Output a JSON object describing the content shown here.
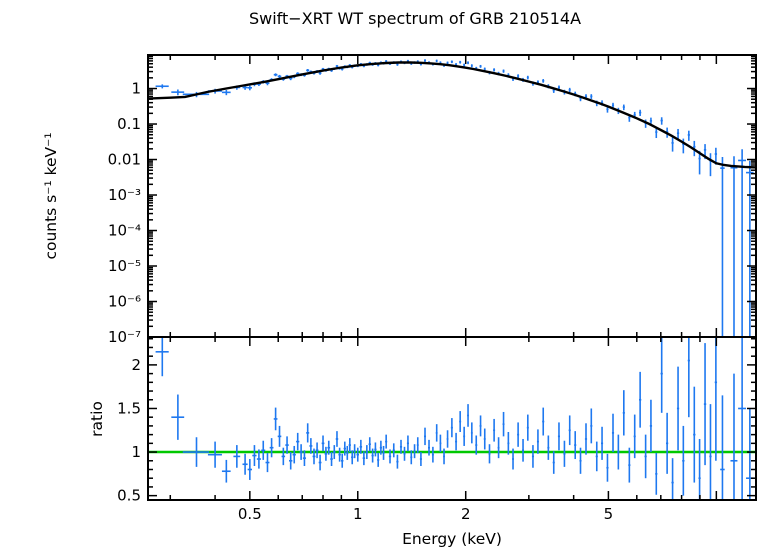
{
  "title": "Swift−XRT WT spectrum of GRB 210514A",
  "chart_data": {
    "type": "scatter+line",
    "title": "Swift−XRT WT spectrum of GRB 210514A",
    "description": "Two-panel X-ray spectrum. Top: count-rate spectrum, blue crosses = data with x/y error bars, black curve = folded model. Bottom: data/model ratio, blue crosses, green line at ratio = 1.",
    "xlabel": "Energy (keV)",
    "x_scale": "log",
    "x_lim": [
      0.26,
      12.9
    ],
    "x_ticks": {
      "labeled": [
        {
          "v": 0.5,
          "label": "0.5"
        },
        {
          "v": 1,
          "label": "1"
        },
        {
          "v": 2,
          "label": "2"
        },
        {
          "v": 5,
          "label": "5"
        }
      ],
      "unlabeled_major": [
        10
      ]
    },
    "colors": {
      "data": "#1e78f0",
      "model": "#000000",
      "ratio_line": "#00c800",
      "background": "#ffffff"
    },
    "top_panel": {
      "ylabel": "counts s⁻¹ keV⁻¹",
      "scale": "log",
      "lim": [
        1e-07,
        8.8
      ],
      "yticks": [
        {
          "v": 1,
          "label": "1"
        },
        {
          "v": 0.1,
          "label": "0.1"
        },
        {
          "v": 0.01,
          "label": "0.01"
        },
        {
          "v": 0.001,
          "label": "10⁻³"
        },
        {
          "v": 0.0001,
          "label": "10⁻⁴"
        },
        {
          "v": 1e-05,
          "label": "10⁻⁵"
        },
        {
          "v": 1e-06,
          "label": "10⁻⁶"
        },
        {
          "v": 1e-07,
          "label": "10⁻⁷"
        }
      ]
    },
    "bottom_panel": {
      "ylabel": "ratio",
      "scale": "linear",
      "lim": [
        0.45,
        2.32
      ],
      "yticks": [
        {
          "v": 0.5,
          "label": "0.5"
        },
        {
          "v": 1,
          "label": "1"
        },
        {
          "v": 1.5,
          "label": "1.5"
        },
        {
          "v": 2,
          "label": "2"
        }
      ],
      "reference_line": 1
    },
    "model": {
      "x": [
        0.26,
        0.3,
        0.33,
        0.38,
        0.43,
        0.48,
        0.55,
        0.62,
        0.7,
        0.8,
        0.9,
        1.0,
        1.1,
        1.2,
        1.3,
        1.4,
        1.5,
        1.6,
        1.7,
        1.8,
        1.9,
        2.0,
        2.1,
        2.2,
        2.4,
        2.6,
        2.8,
        3.0,
        3.25,
        3.5,
        3.75,
        4.0,
        4.25,
        4.5,
        4.75,
        5.0,
        5.5,
        6.0,
        6.5,
        7.0,
        7.5,
        8.0,
        8.5,
        9.0,
        9.5,
        10.0,
        10.5,
        11.0,
        12.0,
        12.9
      ],
      "y": [
        0.52,
        0.55,
        0.58,
        0.8,
        1.0,
        1.22,
        1.55,
        1.95,
        2.5,
        3.2,
        3.9,
        4.5,
        4.95,
        5.25,
        5.4,
        5.4,
        5.3,
        5.1,
        4.85,
        4.55,
        4.2,
        3.85,
        3.55,
        3.25,
        2.7,
        2.25,
        1.88,
        1.57,
        1.27,
        1.02,
        0.83,
        0.68,
        0.555,
        0.455,
        0.375,
        0.31,
        0.21,
        0.145,
        0.1,
        0.068,
        0.047,
        0.032,
        0.022,
        0.015,
        0.0105,
        0.0078,
        0.007,
        0.0066,
        0.0062,
        0.006
      ]
    },
    "bins_format": [
      "energy_keV",
      "half_width_keV",
      "ratio",
      "ratio_error"
    ],
    "bins": [
      [
        0.285,
        0.012,
        2.15,
        0.28
      ],
      [
        0.315,
        0.013,
        1.4,
        0.26
      ],
      [
        0.355,
        0.03,
        1.0,
        0.17
      ],
      [
        0.4,
        0.018,
        0.97,
        0.15
      ],
      [
        0.43,
        0.012,
        0.78,
        0.13
      ],
      [
        0.46,
        0.01,
        0.95,
        0.13
      ],
      [
        0.485,
        0.008,
        0.86,
        0.12
      ],
      [
        0.5,
        0.007,
        0.8,
        0.12
      ],
      [
        0.515,
        0.007,
        0.96,
        0.12
      ],
      [
        0.53,
        0.007,
        0.92,
        0.11
      ],
      [
        0.545,
        0.007,
        1.02,
        0.11
      ],
      [
        0.56,
        0.007,
        0.88,
        0.11
      ],
      [
        0.575,
        0.007,
        1.05,
        0.11
      ],
      [
        0.59,
        0.007,
        1.38,
        0.13
      ],
      [
        0.605,
        0.007,
        1.18,
        0.12
      ],
      [
        0.62,
        0.007,
        0.95,
        0.1
      ],
      [
        0.635,
        0.007,
        1.08,
        0.1
      ],
      [
        0.65,
        0.007,
        0.9,
        0.1
      ],
      [
        0.665,
        0.007,
        0.97,
        0.1
      ],
      [
        0.68,
        0.007,
        1.12,
        0.1
      ],
      [
        0.695,
        0.007,
        1.0,
        0.09
      ],
      [
        0.71,
        0.007,
        0.93,
        0.09
      ],
      [
        0.725,
        0.007,
        1.22,
        0.11
      ],
      [
        0.74,
        0.007,
        1.07,
        0.09
      ],
      [
        0.755,
        0.007,
        0.95,
        0.09
      ],
      [
        0.77,
        0.007,
        1.02,
        0.09
      ],
      [
        0.785,
        0.007,
        0.88,
        0.09
      ],
      [
        0.8,
        0.007,
        1.1,
        0.09
      ],
      [
        0.815,
        0.007,
        0.98,
        0.08
      ],
      [
        0.83,
        0.007,
        1.05,
        0.08
      ],
      [
        0.845,
        0.007,
        0.92,
        0.08
      ],
      [
        0.86,
        0.007,
        1.0,
        0.08
      ],
      [
        0.875,
        0.007,
        1.15,
        0.09
      ],
      [
        0.89,
        0.007,
        0.97,
        0.08
      ],
      [
        0.905,
        0.007,
        0.9,
        0.08
      ],
      [
        0.92,
        0.007,
        1.04,
        0.08
      ],
      [
        0.935,
        0.007,
        0.99,
        0.08
      ],
      [
        0.95,
        0.007,
        1.08,
        0.08
      ],
      [
        0.965,
        0.007,
        0.94,
        0.08
      ],
      [
        0.98,
        0.007,
        1.01,
        0.08
      ],
      [
        1.0,
        0.008,
        0.97,
        0.08
      ],
      [
        1.02,
        0.008,
        1.06,
        0.08
      ],
      [
        1.04,
        0.008,
        0.93,
        0.08
      ],
      [
        1.06,
        0.008,
        1.0,
        0.08
      ],
      [
        1.08,
        0.008,
        1.09,
        0.08
      ],
      [
        1.1,
        0.008,
        0.96,
        0.08
      ],
      [
        1.12,
        0.008,
        1.03,
        0.08
      ],
      [
        1.14,
        0.008,
        0.91,
        0.08
      ],
      [
        1.16,
        0.008,
        1.05,
        0.08
      ],
      [
        1.18,
        0.008,
        0.99,
        0.08
      ],
      [
        1.2,
        0.008,
        1.12,
        0.08
      ],
      [
        1.23,
        0.009,
        0.95,
        0.08
      ],
      [
        1.26,
        0.009,
        1.02,
        0.08
      ],
      [
        1.29,
        0.009,
        0.89,
        0.08
      ],
      [
        1.32,
        0.009,
        1.06,
        0.08
      ],
      [
        1.35,
        0.009,
        0.98,
        0.08
      ],
      [
        1.38,
        0.009,
        1.1,
        0.09
      ],
      [
        1.41,
        0.009,
        0.94,
        0.08
      ],
      [
        1.44,
        0.009,
        1.01,
        0.08
      ],
      [
        1.47,
        0.009,
        1.08,
        0.09
      ],
      [
        1.5,
        0.01,
        0.92,
        0.08
      ],
      [
        1.54,
        0.01,
        1.18,
        0.1
      ],
      [
        1.58,
        0.01,
        1.05,
        0.09
      ],
      [
        1.62,
        0.01,
        0.97,
        0.09
      ],
      [
        1.66,
        0.01,
        1.22,
        0.1
      ],
      [
        1.7,
        0.01,
        1.1,
        0.1
      ],
      [
        1.74,
        0.01,
        0.95,
        0.09
      ],
      [
        1.78,
        0.01,
        1.15,
        0.1
      ],
      [
        1.83,
        0.012,
        1.28,
        0.11
      ],
      [
        1.88,
        0.012,
        1.12,
        0.1
      ],
      [
        1.93,
        0.012,
        1.35,
        0.12
      ],
      [
        1.98,
        0.012,
        1.18,
        0.11
      ],
      [
        2.03,
        0.012,
        1.42,
        0.13
      ],
      [
        2.08,
        0.012,
        1.22,
        0.12
      ],
      [
        2.14,
        0.014,
        1.08,
        0.11
      ],
      [
        2.2,
        0.014,
        1.3,
        0.12
      ],
      [
        2.26,
        0.014,
        1.15,
        0.12
      ],
      [
        2.33,
        0.015,
        0.98,
        0.11
      ],
      [
        2.4,
        0.015,
        1.25,
        0.13
      ],
      [
        2.47,
        0.015,
        1.05,
        0.12
      ],
      [
        2.55,
        0.016,
        1.32,
        0.14
      ],
      [
        2.63,
        0.016,
        1.1,
        0.13
      ],
      [
        2.71,
        0.017,
        0.92,
        0.12
      ],
      [
        2.8,
        0.018,
        1.2,
        0.14
      ],
      [
        2.89,
        0.018,
        1.02,
        0.13
      ],
      [
        2.98,
        0.019,
        1.28,
        0.15
      ],
      [
        3.08,
        0.02,
        0.95,
        0.13
      ],
      [
        3.18,
        0.02,
        1.12,
        0.14
      ],
      [
        3.29,
        0.022,
        1.35,
        0.16
      ],
      [
        3.4,
        0.022,
        1.05,
        0.14
      ],
      [
        3.52,
        0.024,
        0.88,
        0.13
      ],
      [
        3.64,
        0.024,
        1.18,
        0.16
      ],
      [
        3.77,
        0.026,
        0.98,
        0.15
      ],
      [
        3.9,
        0.026,
        1.25,
        0.17
      ],
      [
        4.04,
        0.028,
        1.08,
        0.16
      ],
      [
        4.18,
        0.028,
        0.9,
        0.15
      ],
      [
        4.33,
        0.03,
        1.15,
        0.18
      ],
      [
        4.48,
        0.03,
        1.3,
        0.2
      ],
      [
        4.64,
        0.032,
        0.95,
        0.17
      ],
      [
        4.8,
        0.032,
        1.1,
        0.19
      ],
      [
        4.97,
        0.035,
        0.82,
        0.16
      ],
      [
        5.15,
        0.035,
        1.22,
        0.22
      ],
      [
        5.33,
        0.038,
        1.0,
        0.2
      ],
      [
        5.52,
        0.038,
        1.45,
        0.26
      ],
      [
        5.72,
        0.04,
        0.85,
        0.2
      ],
      [
        5.92,
        0.04,
        1.18,
        0.25
      ],
      [
        6.13,
        0.045,
        1.6,
        0.32
      ],
      [
        6.35,
        0.045,
        0.95,
        0.25
      ],
      [
        6.57,
        0.048,
        1.3,
        0.3
      ],
      [
        6.8,
        0.048,
        0.75,
        0.24
      ],
      [
        7.04,
        0.052,
        1.9,
        0.45
      ],
      [
        7.29,
        0.052,
        1.1,
        0.35
      ],
      [
        7.55,
        0.056,
        0.65,
        0.28
      ],
      [
        7.82,
        0.056,
        1.5,
        0.48
      ],
      [
        8.09,
        0.06,
        0.9,
        0.4
      ],
      [
        8.38,
        0.06,
        2.05,
        0.65
      ],
      [
        8.68,
        0.065,
        1.2,
        0.55
      ],
      [
        8.98,
        0.065,
        0.7,
        0.45
      ],
      [
        9.3,
        0.07,
        1.55,
        0.7
      ],
      [
        9.63,
        0.07,
        0.95,
        0.6
      ],
      [
        9.97,
        0.075,
        1.8,
        0.9
      ],
      [
        10.4,
        0.15,
        0.8,
        0.85
      ],
      [
        11.2,
        0.25,
        0.9,
        1.0
      ],
      [
        11.8,
        0.3,
        1.5,
        1.6
      ],
      [
        12.4,
        0.3,
        0.7,
        0.8
      ]
    ]
  }
}
